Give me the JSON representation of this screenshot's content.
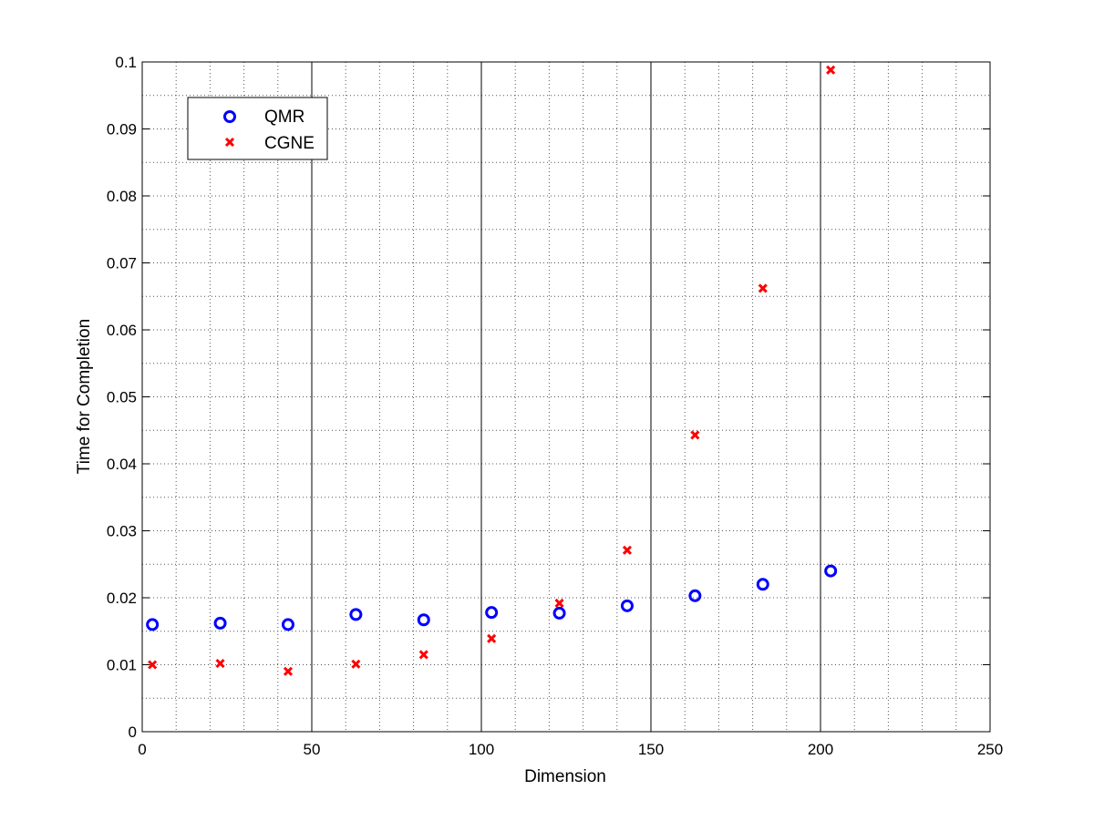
{
  "chart_data": {
    "type": "scatter",
    "title": "",
    "xlabel": "Dimension",
    "ylabel": "Time for Completion",
    "xlim": [
      0,
      250
    ],
    "ylim": [
      0,
      0.1
    ],
    "xticks": [
      "0",
      "50",
      "100",
      "150",
      "200",
      "250"
    ],
    "yticks": [
      "0",
      "0.01",
      "0.02",
      "0.03",
      "0.04",
      "0.05",
      "0.06",
      "0.07",
      "0.08",
      "0.09",
      "0.1"
    ],
    "grid": "dotted minor grid, solid major vertical lines",
    "legend_position": "top-left",
    "series": [
      {
        "name": "QMR",
        "marker": "circle",
        "color": "#0000ff",
        "x": [
          3,
          23,
          43,
          63,
          83,
          103,
          123,
          143,
          163,
          183,
          203
        ],
        "y": [
          0.016,
          0.0162,
          0.016,
          0.0175,
          0.0167,
          0.0178,
          0.0177,
          0.0188,
          0.0203,
          0.022,
          0.024
        ]
      },
      {
        "name": "CGNE",
        "marker": "x",
        "color": "#ff0000",
        "x": [
          3,
          23,
          43,
          63,
          83,
          103,
          123,
          143,
          163,
          183,
          203
        ],
        "y": [
          0.01,
          0.0102,
          0.009,
          0.0101,
          0.0115,
          0.0139,
          0.0192,
          0.0271,
          0.0443,
          0.0662,
          0.0988
        ]
      }
    ]
  }
}
